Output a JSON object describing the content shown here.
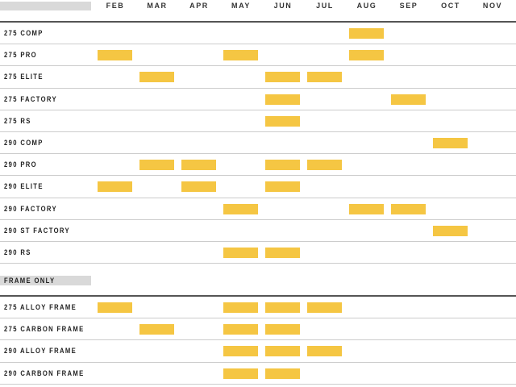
{
  "months": [
    "FEB",
    "MAR",
    "APR",
    "MAY",
    "JUN",
    "JUL",
    "AUG",
    "SEP",
    "OCT",
    "NOV"
  ],
  "bar_color": "#f5c643",
  "bikes": [
    {
      "name": "275 COMP",
      "months": [
        "AUG"
      ]
    },
    {
      "name": "275 PRO",
      "months": [
        "FEB",
        "MAY",
        "AUG"
      ]
    },
    {
      "name": "275 ELITE",
      "months": [
        "MAR",
        "JUN",
        "JUL"
      ]
    },
    {
      "name": "275 FACTORY",
      "months": [
        "JUN",
        "SEP"
      ]
    },
    {
      "name": "275 RS",
      "months": [
        "JUN"
      ]
    },
    {
      "name": "290 COMP",
      "months": [
        "OCT"
      ]
    },
    {
      "name": "290 PRO",
      "months": [
        "MAR",
        "APR",
        "JUN",
        "JUL"
      ]
    },
    {
      "name": "290 ELITE",
      "months": [
        "FEB",
        "APR",
        "JUN"
      ]
    },
    {
      "name": "290 FACTORY",
      "months": [
        "MAY",
        "AUG",
        "SEP"
      ]
    },
    {
      "name": "290 ST FACTORY",
      "months": [
        "OCT"
      ]
    },
    {
      "name": "290 RS",
      "months": [
        "MAY",
        "JUN"
      ]
    }
  ],
  "frame_section_label": "FRAME ONLY",
  "frames": [
    {
      "name": "275 ALLOY FRAME",
      "months": [
        "FEB",
        "MAY",
        "JUN",
        "JUL"
      ]
    },
    {
      "name": "275 CARBON FRAME",
      "months": [
        "MAR",
        "MAY",
        "JUN"
      ]
    },
    {
      "name": "290 ALLOY FRAME",
      "months": [
        "MAY",
        "JUN",
        "JUL"
      ]
    },
    {
      "name": "290 CARBON FRAME",
      "months": [
        "MAY",
        "JUN"
      ]
    }
  ]
}
